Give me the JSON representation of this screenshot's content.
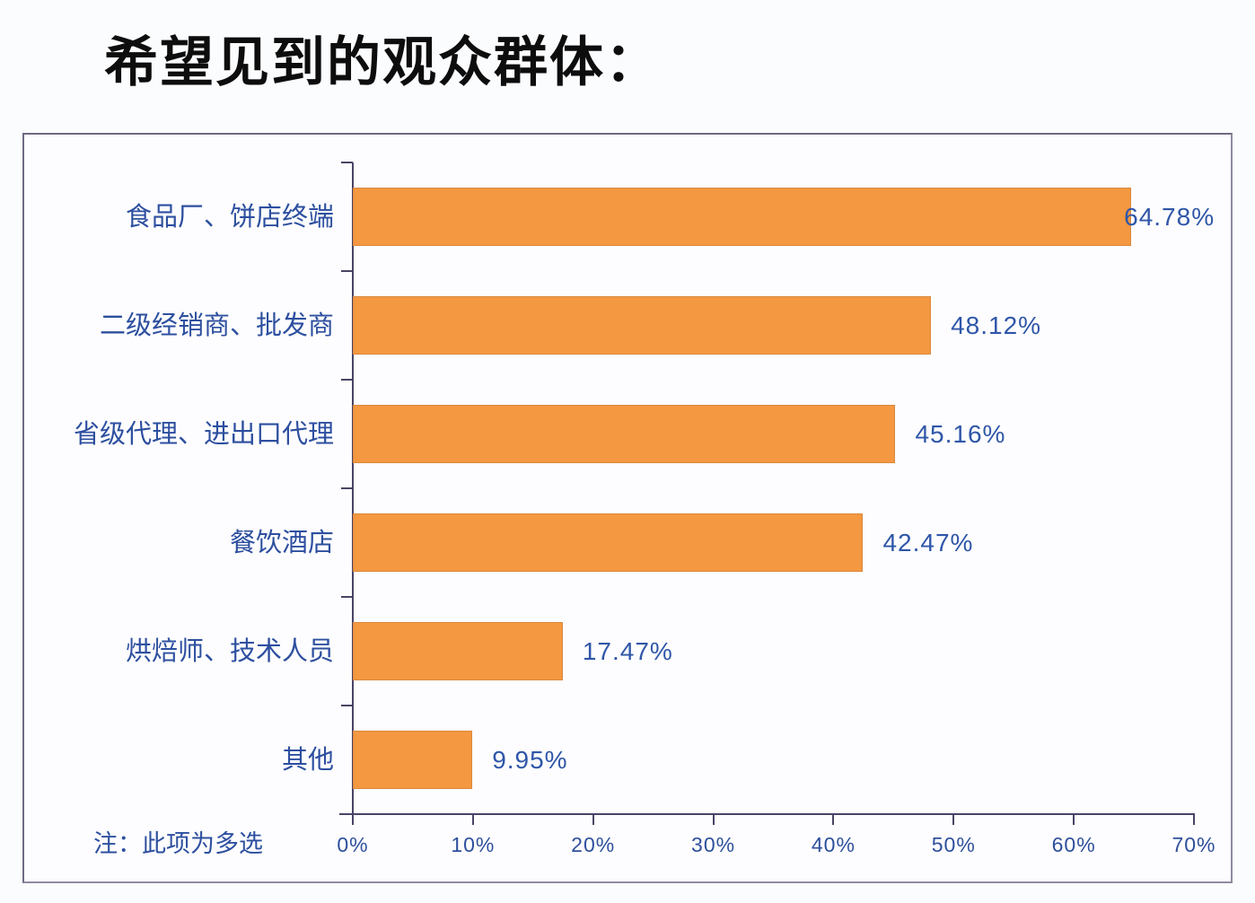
{
  "title": "希望见到的观众群体：",
  "note": "注：此项为多选",
  "colors": {
    "bar": "#F49841",
    "label": "#2F56A8",
    "axis": "#4A4466",
    "title": "#0D0D0D"
  },
  "chart_data": {
    "type": "bar",
    "orientation": "horizontal",
    "title": "希望见到的观众群体：",
    "xlabel": "",
    "ylabel": "",
    "categories": [
      "食品厂、饼店终端",
      "二级经销商、批发商",
      "省级代理、进出口代理",
      "餐饮酒店",
      "烘焙师、技术人员",
      "其他"
    ],
    "values": [
      64.78,
      48.12,
      45.16,
      42.47,
      17.47,
      9.95
    ],
    "value_labels": [
      "64.78%",
      "48.12%",
      "45.16%",
      "42.47%",
      "17.47%",
      "9.95%"
    ],
    "xlim": [
      0,
      70
    ],
    "xticks": [
      "0%",
      "10%",
      "20%",
      "30%",
      "40%",
      "50%",
      "60%",
      "70%"
    ],
    "grid": false,
    "legend": null,
    "annotations": [
      "注：此项为多选"
    ]
  }
}
